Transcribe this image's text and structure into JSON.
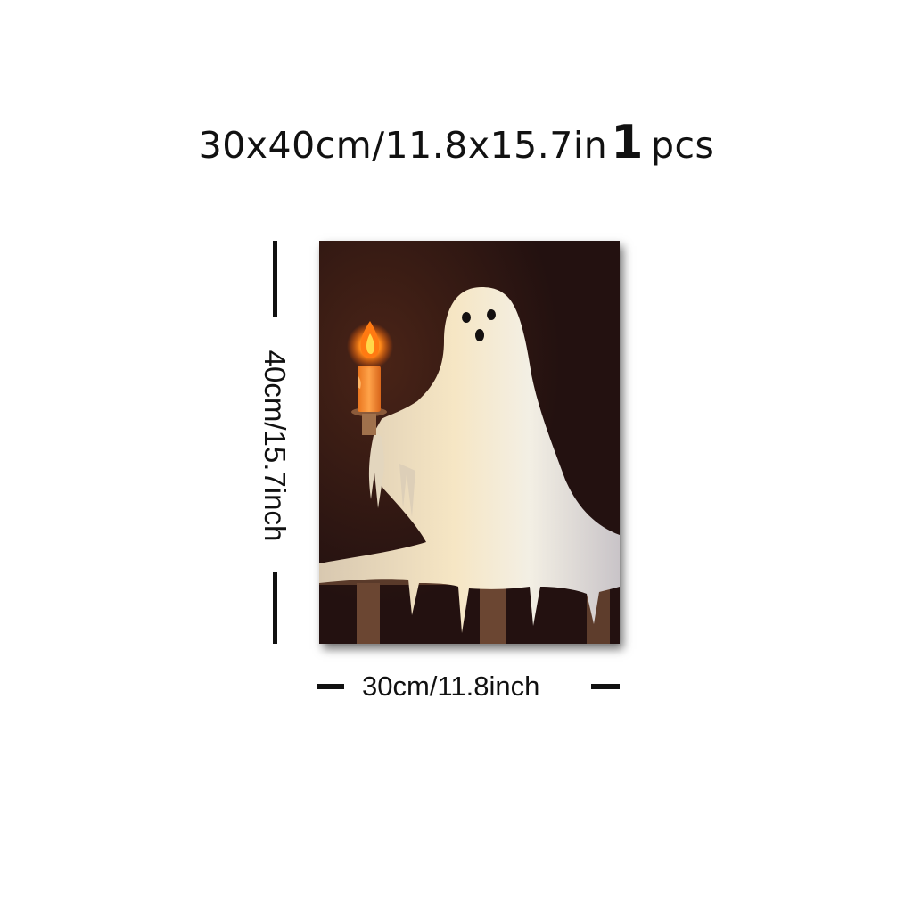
{
  "header": {
    "size_text": "30x40cm/11.8x15.7in",
    "quantity_number": "1",
    "quantity_unit": "pcs"
  },
  "dimensions": {
    "height_label": "40cm/15.7inch",
    "width_label": "30cm/11.8inch"
  },
  "artwork": {
    "subject": "ghost-holding-candle",
    "background_color": "#2b1512",
    "ghost_color": "#efe6d4",
    "flame_color": "#ff8a1a"
  }
}
